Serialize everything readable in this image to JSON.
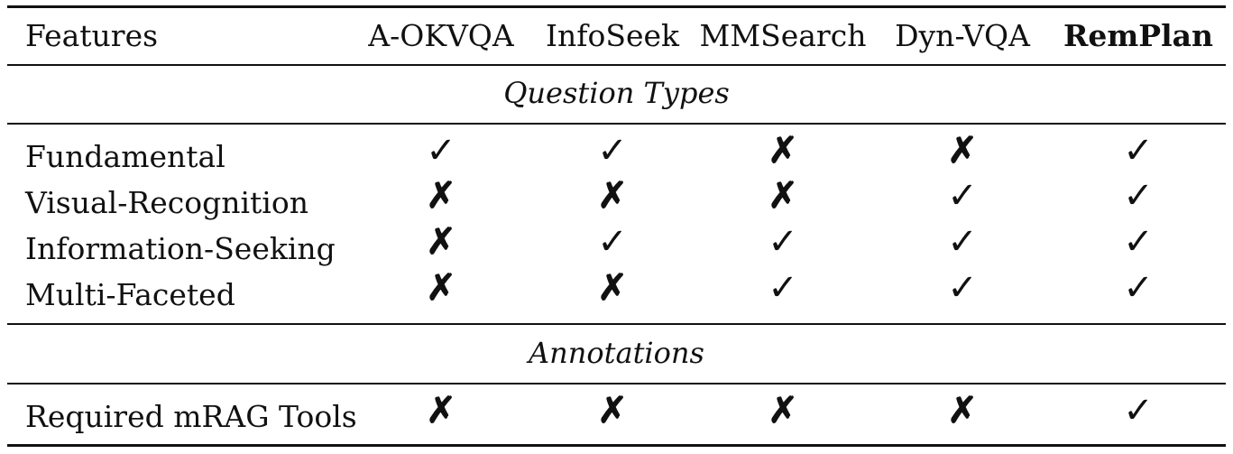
{
  "table": {
    "header": {
      "features": "Features",
      "columns": [
        "A-OKVQA",
        "InfoSeek",
        "MMSearch",
        "Dyn-VQA",
        "RemPlan"
      ]
    },
    "sections": [
      {
        "title": "Question Types",
        "rows": [
          {
            "label": "Fundamental",
            "marks": [
              "✓",
              "✓",
              "✗",
              "✗",
              "✓"
            ]
          },
          {
            "label": "Visual-Recognition",
            "marks": [
              "✗",
              "✗",
              "✗",
              "✓",
              "✓"
            ]
          },
          {
            "label": "Information-Seeking",
            "marks": [
              "✗",
              "✓",
              "✓",
              "✓",
              "✓"
            ]
          },
          {
            "label": "Multi-Faceted",
            "marks": [
              "✗",
              "✗",
              "✓",
              "✓",
              "✓"
            ]
          }
        ]
      },
      {
        "title": "Annotations",
        "rows": [
          {
            "label": "Required mRAG Tools",
            "marks": [
              "✗",
              "✗",
              "✗",
              "✗",
              "✓"
            ]
          }
        ]
      }
    ]
  }
}
